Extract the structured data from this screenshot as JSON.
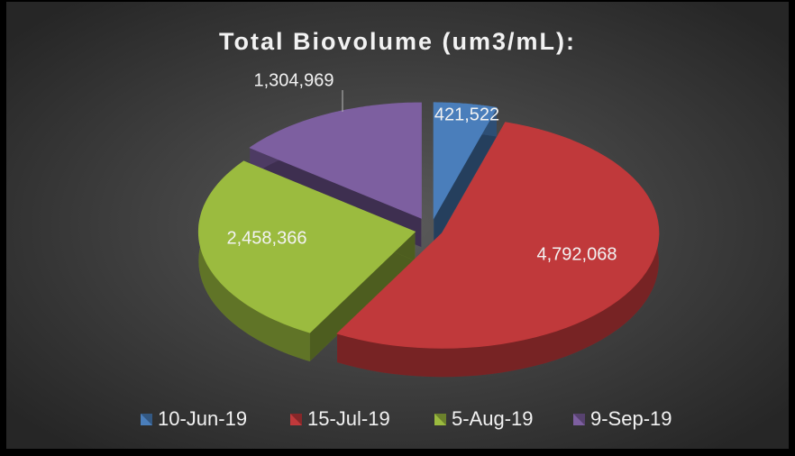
{
  "chart_data": {
    "type": "pie3d",
    "title": "Total Biovolume (um3/mL):",
    "categories": [
      "10-Jun-19",
      "15-Jul-19",
      "5-Aug-19",
      "9-Sep-19"
    ],
    "values": [
      421522,
      4792068,
      2458366,
      1304969
    ],
    "value_labels": [
      "421,522",
      "4,792,068",
      "2,458,366",
      "1,304,969"
    ],
    "colors": [
      "#4a7ebb",
      "#c0393b",
      "#9bbb3f",
      "#7d5fa0"
    ],
    "legend": "bottom"
  }
}
